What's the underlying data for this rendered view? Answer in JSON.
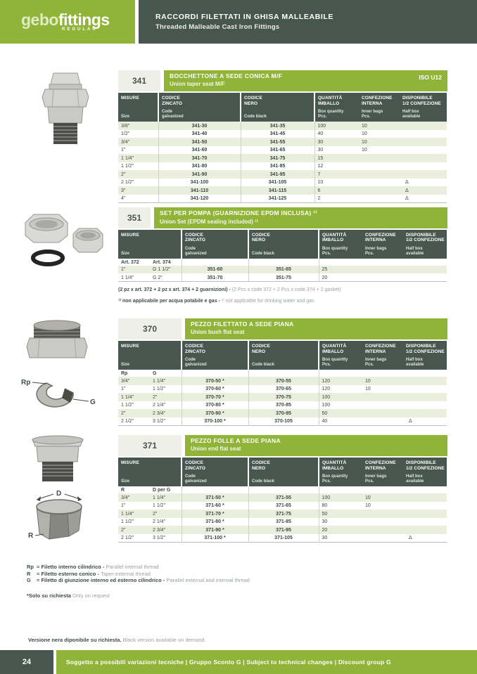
{
  "colors": {
    "accent_green": "#8fb437",
    "dark_green": "#47574f",
    "row_alt": "#e9efdc"
  },
  "header": {
    "logo_gebo": "gebo",
    "logo_fittings": "fittings",
    "logo_sub": "REGULAR",
    "title_it": "RACCORDI FILETTATI IN GHISA MALLEABILE",
    "title_en": "Threaded Malleable Cast Iron Fittings"
  },
  "columns": {
    "misure_it": "MISURE",
    "misure_en": "Size",
    "zincato_it": "CODICE\nZINCATO",
    "zincato_en": "Code\ngalvanized",
    "nero_it": "CODICE\nNERO",
    "nero_en": "Code black",
    "qta_it": "QUANTITÀ\nIMBALLO",
    "qta_en": "Box quantity\nPcs.",
    "conf_it": "CONFEZIONE\nINTERNA",
    "conf_en": "Inner bags\nPcs.",
    "disp_it": "DISPONIBILE\n1/2 CONFEZIONE",
    "disp_en": "Half box\navailable"
  },
  "sections": [
    {
      "id": "341",
      "title_it": "BOCCHETTONE A SEDE CONICA M/F",
      "title_en": "Union taper seat M/F",
      "iso": "ISO U12",
      "rows": [
        [
          "3/8\"",
          "341-30",
          "341-35",
          "100",
          "10",
          ""
        ],
        [
          "1/2\"",
          "341-40",
          "341-45",
          "40",
          "10",
          ""
        ],
        [
          "3/4\"",
          "341-50",
          "341-55",
          "30",
          "10",
          ""
        ],
        [
          "1\"",
          "341-60",
          "341-65",
          "30",
          "10",
          ""
        ],
        [
          "1 1/4\"",
          "341-70",
          "341-75",
          "15",
          "",
          ""
        ],
        [
          "1 1/2\"",
          "341-80",
          "341-85",
          "12",
          "",
          ""
        ],
        [
          "2\"",
          "341-90",
          "341-95",
          "7",
          "",
          ""
        ],
        [
          "2 1/2\"",
          "341-100",
          "341-105",
          "10",
          "",
          "Δ"
        ],
        [
          "3\"",
          "341-110",
          "341-115",
          "6",
          "",
          "Δ"
        ],
        [
          "4\"",
          "341-120",
          "341-125",
          "2",
          "",
          "Δ"
        ]
      ]
    },
    {
      "id": "351",
      "title_it": "SET PER POMPA (GUARNIZIONE EPDM INCLUSA) ¹⁾",
      "title_en": "Union Set (EPDM sealing included) ¹⁾",
      "sub_left": "Art. 372",
      "sub_right": "Art. 374",
      "rows": [
        [
          "1\"",
          "G 1 1/2\"",
          "351-60",
          "351-65",
          "25",
          "",
          ""
        ],
        [
          "1 1/4\"",
          "G 2\"",
          "351-70",
          "351-75",
          "20",
          "",
          ""
        ]
      ],
      "note1_it": "(2 pz x art. 372 + 2 pz x art. 374 + 2 guarnizioni) - ",
      "note1_en": "(2 Pcs x code 372 + 2 Pcs x code 374 + 2 gasket)",
      "note2_it": "¹⁾ non applicabile per acqua potabile e gas - ",
      "note2_en": "¹⁾ not applicable for drinking water and gas"
    },
    {
      "id": "370",
      "title_it": "PEZZO FILETTATO A SEDE PIANA",
      "title_en": "Union bush flat seat",
      "sub_left": "Rp",
      "sub_right": "G",
      "diagram_labels": {
        "left": "Rp",
        "right": "G"
      },
      "rows": [
        [
          "3/4\"",
          "1 1/4\"",
          "370-50 *",
          "370-55",
          "120",
          "10",
          ""
        ],
        [
          "1\"",
          "1 1/2\"",
          "370-60 *",
          "370-65",
          "120",
          "10",
          ""
        ],
        [
          "1 1/4\"",
          "2\"",
          "370-70 *",
          "370-75",
          "100",
          "",
          ""
        ],
        [
          "1 1/2\"",
          "2 1/4\"",
          "370-80 *",
          "370-85",
          "100",
          "",
          ""
        ],
        [
          "2\"",
          "2 3/4\"",
          "370-90 *",
          "370-95",
          "50",
          "",
          ""
        ],
        [
          "2 1/2\"",
          "3 1/2\"",
          "370-100 *",
          "370-105",
          "40",
          "",
          "Δ"
        ]
      ]
    },
    {
      "id": "371",
      "title_it": "PEZZO FOLLE A SEDE PIANA",
      "title_en": "Union end flat seat",
      "sub_left": "R",
      "sub_right": "D per G",
      "diagram_labels": {
        "top": "D",
        "bottom": "R"
      },
      "rows": [
        [
          "3/4\"",
          "1 1/4\"",
          "371-50 *",
          "371-55",
          "100",
          "10",
          ""
        ],
        [
          "1\"",
          "1 1/2\"",
          "371-60 *",
          "371-65",
          "80",
          "10",
          ""
        ],
        [
          "1 1/4\"",
          "2\"",
          "371-70 *",
          "371-75",
          "50",
          "",
          ""
        ],
        [
          "1 1/2\"",
          "2 1/4\"",
          "371-80 *",
          "371-85",
          "30",
          "",
          ""
        ],
        [
          "2\"",
          "2 3/4\"",
          "371-90 *",
          "371-95",
          "20",
          "",
          ""
        ],
        [
          "2 1/2\"",
          "3 1/2\"",
          "371-100 *",
          "371-105",
          "30",
          "",
          "Δ"
        ]
      ]
    }
  ],
  "footnotes": [
    {
      "sym": "Rp",
      "it": "= Filetto interno cilindrico - ",
      "en": "Parallel internal thread"
    },
    {
      "sym": "R",
      "it": "= Filetto esterno conico - ",
      "en": "Taper external thread"
    },
    {
      "sym": "G",
      "it": "= Filetto di giunzione interno ed esterno cilindrico - ",
      "en": "Parallel external and internal thread"
    }
  ],
  "request_note": {
    "it": "*Solo su richiesta ",
    "en": "Only on request"
  },
  "version_note": {
    "it": "Versione nera diponibile su richiesta. ",
    "en": "Black version available on demand."
  },
  "footer": {
    "page": "24",
    "text": "Soggetto a possibili variazioni tecniche  |  Gruppo Sconto G  |  Subject to technical changes  |  Discount group G"
  }
}
